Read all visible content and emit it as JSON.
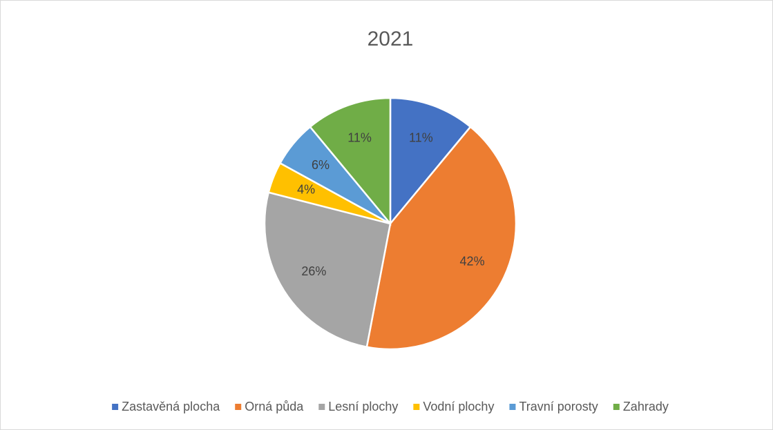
{
  "chart_data": {
    "type": "pie",
    "title": "2021",
    "categories": [
      "Zastavěná plocha",
      "Orná půda",
      "Lesní plochy",
      "Vodní plochy",
      "Travní porosty",
      "Zahrady"
    ],
    "values": [
      11,
      42,
      26,
      4,
      6,
      11
    ],
    "value_labels": [
      "11%",
      "42%",
      "26%",
      "4%",
      "6%",
      "11%"
    ],
    "colors": [
      "#4472c4",
      "#ed7d31",
      "#a5a5a5",
      "#ffc000",
      "#5b9bd5",
      "#70ad47"
    ],
    "legend": "bottom"
  }
}
